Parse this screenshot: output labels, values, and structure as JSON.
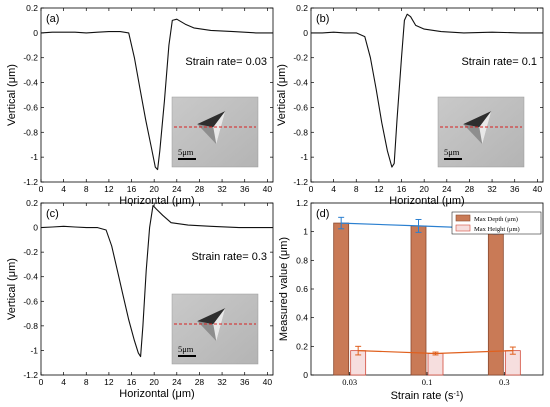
{
  "colors": {
    "depth_fill": "#c97a56",
    "depth_edge": "#8a4a30",
    "height_fill": "#f6dede",
    "height_edge": "#d24a3a",
    "depth_line": "#2a7fd0",
    "height_line": "#e0601e",
    "marker_line": "#d62020"
  },
  "chart_data": [
    {
      "type": "line",
      "panel_label": "(a)",
      "annotation": "Strain rate= 0.03",
      "xlabel": "Horizontal (μm)",
      "ylabel": "Vertical (μm)",
      "xlim": [
        0,
        41
      ],
      "ylim": [
        -1.2,
        0.2
      ],
      "xticks": [
        "0",
        "4",
        "8",
        "12",
        "16",
        "20",
        "24",
        "28",
        "32",
        "36",
        "40"
      ],
      "yticks": [
        "0.2",
        "0",
        "-0.2",
        "-0.4",
        "-0.6",
        "-0.8",
        "-1",
        "-1.2"
      ],
      "x": [
        0,
        2,
        4,
        6,
        8,
        10,
        12,
        14,
        15.5,
        16.5,
        17.5,
        18.5,
        19.5,
        20.2,
        20.6,
        21.0,
        21.8,
        22.6,
        23.2,
        24.0,
        25.5,
        27,
        30,
        34,
        38,
        41
      ],
      "y": [
        0.0,
        0.005,
        0.005,
        0.005,
        0.0,
        0.005,
        0.01,
        0.01,
        0.0,
        -0.2,
        -0.45,
        -0.7,
        -0.92,
        -1.08,
        -1.1,
        -0.95,
        -0.55,
        -0.1,
        0.1,
        0.11,
        0.07,
        0.04,
        0.02,
        0.01,
        0.0,
        0.0
      ],
      "inset_scale": "5μm"
    },
    {
      "type": "line",
      "panel_label": "(b)",
      "annotation": "Strain rate= 0.1",
      "xlabel": "Horizontal (μm)",
      "ylabel": "Vertical (μm)",
      "xlim": [
        0,
        41
      ],
      "ylim": [
        -1.2,
        0.2
      ],
      "xticks": [
        "0",
        "4",
        "8",
        "12",
        "16",
        "20",
        "24",
        "28",
        "32",
        "36",
        "40"
      ],
      "yticks": [
        "0.2",
        "0",
        "-0.2",
        "-0.4",
        "-0.6",
        "-0.8",
        "-1",
        "-1.2"
      ],
      "x": [
        0,
        2,
        4,
        6,
        8,
        9.5,
        10.5,
        11.5,
        12.5,
        13.5,
        14.3,
        14.7,
        15.2,
        16.0,
        16.5,
        17.0,
        17.6,
        18.5,
        20,
        23,
        27,
        32,
        37,
        41
      ],
      "y": [
        0.0,
        0.0,
        0.005,
        0.0,
        0.0,
        -0.03,
        -0.2,
        -0.45,
        -0.72,
        -0.95,
        -1.08,
        -1.05,
        -0.7,
        -0.2,
        0.1,
        0.15,
        0.13,
        0.06,
        0.03,
        0.01,
        0.0,
        0.005,
        0.0,
        0.0
      ],
      "inset_scale": "5μm"
    },
    {
      "type": "line",
      "panel_label": "(c)",
      "annotation": "Strain rate= 0.3",
      "xlabel": "Horizontal (μm)",
      "ylabel": "Vertical (μm)",
      "xlim": [
        0,
        41
      ],
      "ylim": [
        -1.2,
        0.2
      ],
      "xticks": [
        "0",
        "4",
        "8",
        "12",
        "16",
        "20",
        "24",
        "28",
        "32",
        "36",
        "40"
      ],
      "yticks": [
        "0.2",
        "0",
        "-0.2",
        "-0.4",
        "-0.6",
        "-0.8",
        "-1",
        "-1.2"
      ],
      "x": [
        0,
        2,
        4,
        6,
        8,
        10,
        11.5,
        12.5,
        13.5,
        14.5,
        15.5,
        16.5,
        17.2,
        17.6,
        18.0,
        18.6,
        19.2,
        19.8,
        20.4,
        21.5,
        23,
        26,
        30,
        35,
        41
      ],
      "y": [
        0.0,
        0.005,
        0.01,
        0.005,
        0.0,
        0.0,
        -0.02,
        -0.15,
        -0.35,
        -0.55,
        -0.75,
        -0.92,
        -1.02,
        -1.05,
        -0.8,
        -0.35,
        0.0,
        0.18,
        0.15,
        0.1,
        0.04,
        0.02,
        0.01,
        0.0,
        0.0
      ],
      "inset_scale": "5μm"
    },
    {
      "type": "bar",
      "panel_label": "(d)",
      "xlabel": "Strain rate (s",
      "xlabel_sup": "-1",
      "xlabel_end": ")",
      "ylabel": "Measured value (μm)",
      "ylim": [
        0,
        1.2
      ],
      "yticks": [
        "0",
        "0.2",
        "0.4",
        "0.6",
        "0.8",
        "1",
        "1.2"
      ],
      "categories": [
        "0.03",
        "0.1",
        "0.3"
      ],
      "series": [
        {
          "name": "Max Depth (μm)",
          "values": [
            1.06,
            1.04,
            1.02
          ],
          "errors": [
            0.04,
            0.045,
            0.035
          ]
        },
        {
          "name": "Max Height (μm)",
          "values": [
            0.17,
            0.15,
            0.17
          ],
          "errors": [
            0.03,
            0.01,
            0.025
          ]
        }
      ],
      "legend": "top-right"
    }
  ]
}
